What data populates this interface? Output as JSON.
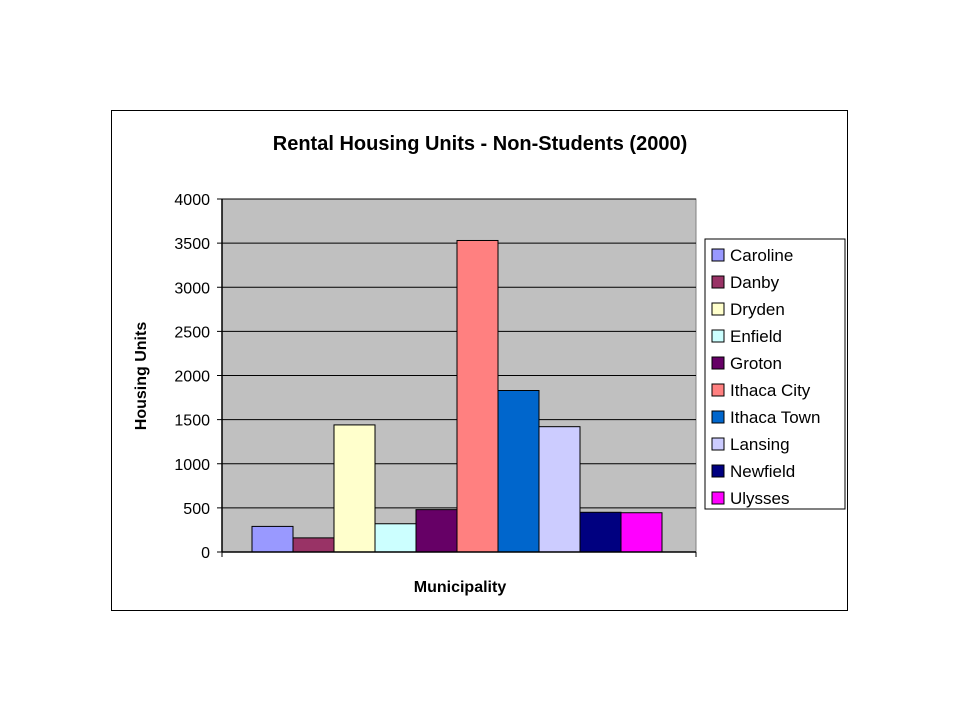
{
  "chart_data": {
    "type": "bar",
    "title": "Rental Housing Units - Non-Students (2000)",
    "xlabel": "Municipality",
    "ylabel": "Housing Units",
    "ylim": [
      0,
      4000
    ],
    "yticks": [
      "0",
      "500",
      "1000",
      "1500",
      "2000",
      "2500",
      "3000",
      "3500",
      "4000"
    ],
    "grid": true,
    "legend_position": "right",
    "series": [
      {
        "name": "Caroline",
        "value": 290,
        "color": "#9999ff"
      },
      {
        "name": "Danby",
        "value": 160,
        "color": "#993366"
      },
      {
        "name": "Dryden",
        "value": 1440,
        "color": "#ffffcc"
      },
      {
        "name": "Enfield",
        "value": 320,
        "color": "#ccffff"
      },
      {
        "name": "Groton",
        "value": 480,
        "color": "#660066"
      },
      {
        "name": "Ithaca City",
        "value": 3530,
        "color": "#ff8080"
      },
      {
        "name": "Ithaca Town",
        "value": 1830,
        "color": "#0066cc"
      },
      {
        "name": "Lansing",
        "value": 1420,
        "color": "#ccccff"
      },
      {
        "name": "Newfield",
        "value": 450,
        "color": "#000080"
      },
      {
        "name": "Ulysses",
        "value": 445,
        "color": "#ff00ff"
      }
    ],
    "plot_background": "#c0c0c0"
  }
}
